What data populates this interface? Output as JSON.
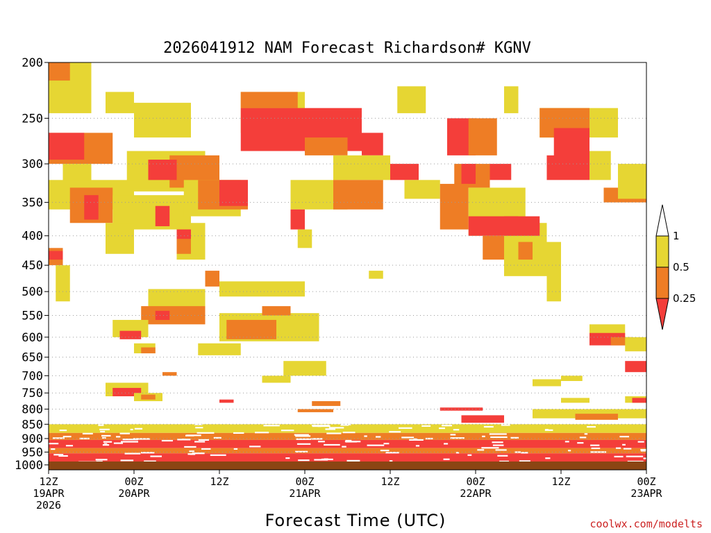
{
  "chart_data": {
    "type": "heatmap",
    "title": "2026041912 NAM Forecast Richardson# KGNV",
    "xlabel": "Forecast Time (UTC)",
    "credit": "coolwx.com/modelts",
    "y_levels_hPa": [
      200,
      250,
      300,
      350,
      400,
      450,
      500,
      550,
      600,
      650,
      700,
      750,
      800,
      850,
      900,
      950,
      1000
    ],
    "y_tick_labels": [
      "200",
      "250",
      "300",
      "350",
      "400",
      "450",
      "500",
      "550",
      "600",
      "650",
      "700",
      "750",
      "800",
      "850",
      "900",
      "950",
      "1000"
    ],
    "ylim_hPa": [
      1020,
      200
    ],
    "x_range_hours": [
      0,
      84
    ],
    "x_ticks": [
      {
        "hour": 0,
        "lines": [
          "12Z",
          "19APR",
          "2026"
        ]
      },
      {
        "hour": 12,
        "lines": [
          "00Z",
          "20APR"
        ]
      },
      {
        "hour": 24,
        "lines": [
          "12Z"
        ]
      },
      {
        "hour": 36,
        "lines": [
          "00Z",
          "21APR"
        ]
      },
      {
        "hour": 48,
        "lines": [
          "12Z"
        ]
      },
      {
        "hour": 60,
        "lines": [
          "00Z",
          "22APR"
        ]
      },
      {
        "hour": 72,
        "lines": [
          "12Z"
        ]
      },
      {
        "hour": 84,
        "lines": [
          "00Z",
          "23APR"
        ]
      }
    ],
    "legend": [
      {
        "range": "> 1",
        "label": "1",
        "color": "#ffffff"
      },
      {
        "range": "0.5 to 1",
        "label": "0.5",
        "color": "#e6d633"
      },
      {
        "range": "0.25 to 0.5",
        "label": "0.25",
        "color": "#ee7d25"
      },
      {
        "range": "< 0.25",
        "label": "",
        "color": "#f43e3a"
      }
    ],
    "colors": {
      "low": "#f43e3a",
      "mid": "#ee7d25",
      "high": "#e6d633",
      "ground": "#8b4513"
    },
    "regions": [
      {
        "cat": "high",
        "h": [
          0,
          6
        ],
        "p": [
          200,
          245
        ]
      },
      {
        "cat": "mid",
        "h": [
          0,
          3
        ],
        "p": [
          200,
          215
        ]
      },
      {
        "cat": "high",
        "h": [
          8,
          12
        ],
        "p": [
          225,
          245
        ]
      },
      {
        "cat": "high",
        "h": [
          12,
          20
        ],
        "p": [
          235,
          270
        ]
      },
      {
        "cat": "high",
        "h": [
          27,
          36
        ],
        "p": [
          225,
          265
        ]
      },
      {
        "cat": "mid",
        "h": [
          27,
          35
        ],
        "p": [
          225,
          240
        ]
      },
      {
        "cat": "low",
        "h": [
          27,
          44
        ],
        "p": [
          240,
          285
        ]
      },
      {
        "cat": "high",
        "h": [
          49,
          53
        ],
        "p": [
          220,
          245
        ]
      },
      {
        "cat": "low",
        "h": [
          56,
          60
        ],
        "p": [
          250,
          290
        ]
      },
      {
        "cat": "mid",
        "h": [
          59,
          63
        ],
        "p": [
          250,
          290
        ]
      },
      {
        "cat": "high",
        "h": [
          64,
          66
        ],
        "p": [
          220,
          245
        ]
      },
      {
        "cat": "high",
        "h": [
          69,
          80
        ],
        "p": [
          240,
          270
        ]
      },
      {
        "cat": "mid",
        "h": [
          69,
          76
        ],
        "p": [
          240,
          270
        ]
      },
      {
        "cat": "low",
        "h": [
          71,
          76
        ],
        "p": [
          260,
          300
        ]
      },
      {
        "cat": "mid",
        "h": [
          0,
          9
        ],
        "p": [
          265,
          300
        ]
      },
      {
        "cat": "low",
        "h": [
          0,
          5
        ],
        "p": [
          265,
          295
        ]
      },
      {
        "cat": "high",
        "h": [
          2,
          6
        ],
        "p": [
          300,
          330
        ]
      },
      {
        "cat": "high",
        "h": [
          11,
          22
        ],
        "p": [
          285,
          335
        ]
      },
      {
        "cat": "mid",
        "h": [
          17,
          24
        ],
        "p": [
          290,
          330
        ]
      },
      {
        "cat": "low",
        "h": [
          14,
          18
        ],
        "p": [
          295,
          320
        ]
      },
      {
        "cat": "mid",
        "h": [
          36,
          42
        ],
        "p": [
          270,
          290
        ]
      },
      {
        "cat": "low",
        "h": [
          44,
          47
        ],
        "p": [
          265,
          290
        ]
      },
      {
        "cat": "high",
        "h": [
          40,
          48
        ],
        "p": [
          290,
          320
        ]
      },
      {
        "cat": "low",
        "h": [
          48,
          52
        ],
        "p": [
          300,
          320
        ]
      },
      {
        "cat": "mid",
        "h": [
          57,
          62
        ],
        "p": [
          300,
          330
        ]
      },
      {
        "cat": "low",
        "h": [
          58,
          60
        ],
        "p": [
          300,
          325
        ]
      },
      {
        "cat": "low",
        "h": [
          62,
          65
        ],
        "p": [
          300,
          320
        ]
      },
      {
        "cat": "low",
        "h": [
          70,
          76
        ],
        "p": [
          290,
          320
        ]
      },
      {
        "cat": "high",
        "h": [
          76,
          79
        ],
        "p": [
          285,
          320
        ]
      },
      {
        "cat": "mid",
        "h": [
          78,
          84
        ],
        "p": [
          330,
          350
        ]
      },
      {
        "cat": "high",
        "h": [
          80,
          84
        ],
        "p": [
          300,
          345
        ]
      },
      {
        "cat": "high",
        "h": [
          0,
          12
        ],
        "p": [
          320,
          360
        ]
      },
      {
        "cat": "mid",
        "h": [
          3,
          9
        ],
        "p": [
          330,
          380
        ]
      },
      {
        "cat": "low",
        "h": [
          5,
          7
        ],
        "p": [
          340,
          375
        ]
      },
      {
        "cat": "high",
        "h": [
          9,
          20
        ],
        "p": [
          340,
          390
        ]
      },
      {
        "cat": "low",
        "h": [
          15,
          17
        ],
        "p": [
          355,
          385
        ]
      },
      {
        "cat": "high",
        "h": [
          19,
          27
        ],
        "p": [
          320,
          370
        ]
      },
      {
        "cat": "mid",
        "h": [
          21,
          28
        ],
        "p": [
          320,
          360
        ]
      },
      {
        "cat": "low",
        "h": [
          24,
          28
        ],
        "p": [
          320,
          355
        ]
      },
      {
        "cat": "high",
        "h": [
          34,
          42
        ],
        "p": [
          320,
          360
        ]
      },
      {
        "cat": "low",
        "h": [
          34,
          36
        ],
        "p": [
          360,
          390
        ]
      },
      {
        "cat": "mid",
        "h": [
          40,
          47
        ],
        "p": [
          320,
          360
        ]
      },
      {
        "cat": "high",
        "h": [
          50,
          55
        ],
        "p": [
          320,
          345
        ]
      },
      {
        "cat": "mid",
        "h": [
          55,
          59
        ],
        "p": [
          325,
          390
        ]
      },
      {
        "cat": "high",
        "h": [
          59,
          67
        ],
        "p": [
          330,
          400
        ]
      },
      {
        "cat": "low",
        "h": [
          59,
          66
        ],
        "p": [
          370,
          400
        ]
      },
      {
        "cat": "mid",
        "h": [
          61,
          64
        ],
        "p": [
          400,
          440
        ]
      },
      {
        "cat": "high",
        "h": [
          64,
          70
        ],
        "p": [
          380,
          470
        ]
      },
      {
        "cat": "low",
        "h": [
          64,
          69
        ],
        "p": [
          370,
          400
        ]
      },
      {
        "cat": "mid",
        "h": [
          66,
          68
        ],
        "p": [
          410,
          440
        ]
      },
      {
        "cat": "high",
        "h": [
          70,
          72
        ],
        "p": [
          410,
          520
        ]
      },
      {
        "cat": "mid",
        "h": [
          0,
          2
        ],
        "p": [
          420,
          450
        ]
      },
      {
        "cat": "low",
        "h": [
          0,
          2
        ],
        "p": [
          425,
          440
        ]
      },
      {
        "cat": "high",
        "h": [
          1,
          3
        ],
        "p": [
          450,
          520
        ]
      },
      {
        "cat": "high",
        "h": [
          8,
          12
        ],
        "p": [
          380,
          430
        ]
      },
      {
        "cat": "high",
        "h": [
          18,
          22
        ],
        "p": [
          380,
          440
        ]
      },
      {
        "cat": "mid",
        "h": [
          18,
          20
        ],
        "p": [
          390,
          430
        ]
      },
      {
        "cat": "low",
        "h": [
          18,
          20
        ],
        "p": [
          390,
          405
        ]
      },
      {
        "cat": "mid",
        "h": [
          22,
          24
        ],
        "p": [
          460,
          490
        ]
      },
      {
        "cat": "high",
        "h": [
          24,
          36
        ],
        "p": [
          480,
          510
        ]
      },
      {
        "cat": "high",
        "h": [
          35,
          37
        ],
        "p": [
          390,
          420
        ]
      },
      {
        "cat": "high",
        "h": [
          45,
          47
        ],
        "p": [
          460,
          475
        ]
      },
      {
        "cat": "high",
        "h": [
          14,
          22
        ],
        "p": [
          495,
          560
        ]
      },
      {
        "cat": "mid",
        "h": [
          13,
          22
        ],
        "p": [
          530,
          570
        ]
      },
      {
        "cat": "low",
        "h": [
          15,
          17
        ],
        "p": [
          540,
          560
        ]
      },
      {
        "cat": "high",
        "h": [
          24,
          38
        ],
        "p": [
          545,
          610
        ]
      },
      {
        "cat": "mid",
        "h": [
          25,
          32
        ],
        "p": [
          560,
          605
        ]
      },
      {
        "cat": "mid",
        "h": [
          30,
          34
        ],
        "p": [
          530,
          550
        ]
      },
      {
        "cat": "high",
        "h": [
          9,
          14
        ],
        "p": [
          560,
          600
        ]
      },
      {
        "cat": "low",
        "h": [
          10,
          13
        ],
        "p": [
          585,
          605
        ]
      },
      {
        "cat": "high",
        "h": [
          12,
          15
        ],
        "p": [
          615,
          640
        ]
      },
      {
        "cat": "mid",
        "h": [
          13,
          15
        ],
        "p": [
          625,
          640
        ]
      },
      {
        "cat": "high",
        "h": [
          21,
          27
        ],
        "p": [
          615,
          645
        ]
      },
      {
        "cat": "high",
        "h": [
          33,
          39
        ],
        "p": [
          660,
          700
        ]
      },
      {
        "cat": "high",
        "h": [
          30,
          34
        ],
        "p": [
          700,
          720
        ]
      },
      {
        "cat": "mid",
        "h": [
          16,
          18
        ],
        "p": [
          690,
          700
        ]
      },
      {
        "cat": "high",
        "h": [
          8,
          14
        ],
        "p": [
          720,
          760
        ]
      },
      {
        "cat": "low",
        "h": [
          9,
          13
        ],
        "p": [
          735,
          760
        ]
      },
      {
        "cat": "high",
        "h": [
          12,
          16
        ],
        "p": [
          750,
          775
        ]
      },
      {
        "cat": "mid",
        "h": [
          13,
          15
        ],
        "p": [
          755,
          770
        ]
      },
      {
        "cat": "low",
        "h": [
          24,
          26
        ],
        "p": [
          770,
          780
        ]
      },
      {
        "cat": "mid",
        "h": [
          37,
          41
        ],
        "p": [
          775,
          790
        ]
      },
      {
        "cat": "high",
        "h": [
          68,
          72
        ],
        "p": [
          710,
          730
        ]
      },
      {
        "cat": "high",
        "h": [
          72,
          75
        ],
        "p": [
          700,
          715
        ]
      },
      {
        "cat": "high",
        "h": [
          72,
          76
        ],
        "p": [
          765,
          780
        ]
      },
      {
        "cat": "high",
        "h": [
          76,
          81
        ],
        "p": [
          570,
          600
        ]
      },
      {
        "cat": "low",
        "h": [
          76,
          81
        ],
        "p": [
          590,
          620
        ]
      },
      {
        "cat": "mid",
        "h": [
          79,
          82
        ],
        "p": [
          600,
          620
        ]
      },
      {
        "cat": "high",
        "h": [
          81,
          84
        ],
        "p": [
          600,
          635
        ]
      },
      {
        "cat": "low",
        "h": [
          81,
          84
        ],
        "p": [
          660,
          690
        ]
      },
      {
        "cat": "high",
        "h": [
          81,
          84
        ],
        "p": [
          760,
          780
        ]
      },
      {
        "cat": "low",
        "h": [
          82,
          84
        ],
        "p": [
          765,
          780
        ]
      },
      {
        "cat": "high",
        "h": [
          0,
          84
        ],
        "p": [
          850,
          880
        ]
      },
      {
        "cat": "mid",
        "h": [
          0,
          84
        ],
        "p": [
          880,
          905
        ]
      },
      {
        "cat": "low",
        "h": [
          0,
          84
        ],
        "p": [
          905,
          935
        ]
      },
      {
        "cat": "mid",
        "h": [
          0,
          84
        ],
        "p": [
          935,
          955
        ]
      },
      {
        "cat": "low",
        "h": [
          0,
          84
        ],
        "p": [
          955,
          1010
        ]
      },
      {
        "cat": "low",
        "h": [
          55,
          61
        ],
        "p": [
          795,
          805
        ]
      },
      {
        "cat": "mid",
        "h": [
          35,
          40
        ],
        "p": [
          800,
          810
        ]
      },
      {
        "cat": "high",
        "h": [
          68,
          84
        ],
        "p": [
          800,
          830
        ]
      },
      {
        "cat": "mid",
        "h": [
          74,
          80
        ],
        "p": [
          815,
          835
        ]
      },
      {
        "cat": "low",
        "h": [
          58,
          64
        ],
        "p": [
          820,
          845
        ]
      }
    ]
  }
}
